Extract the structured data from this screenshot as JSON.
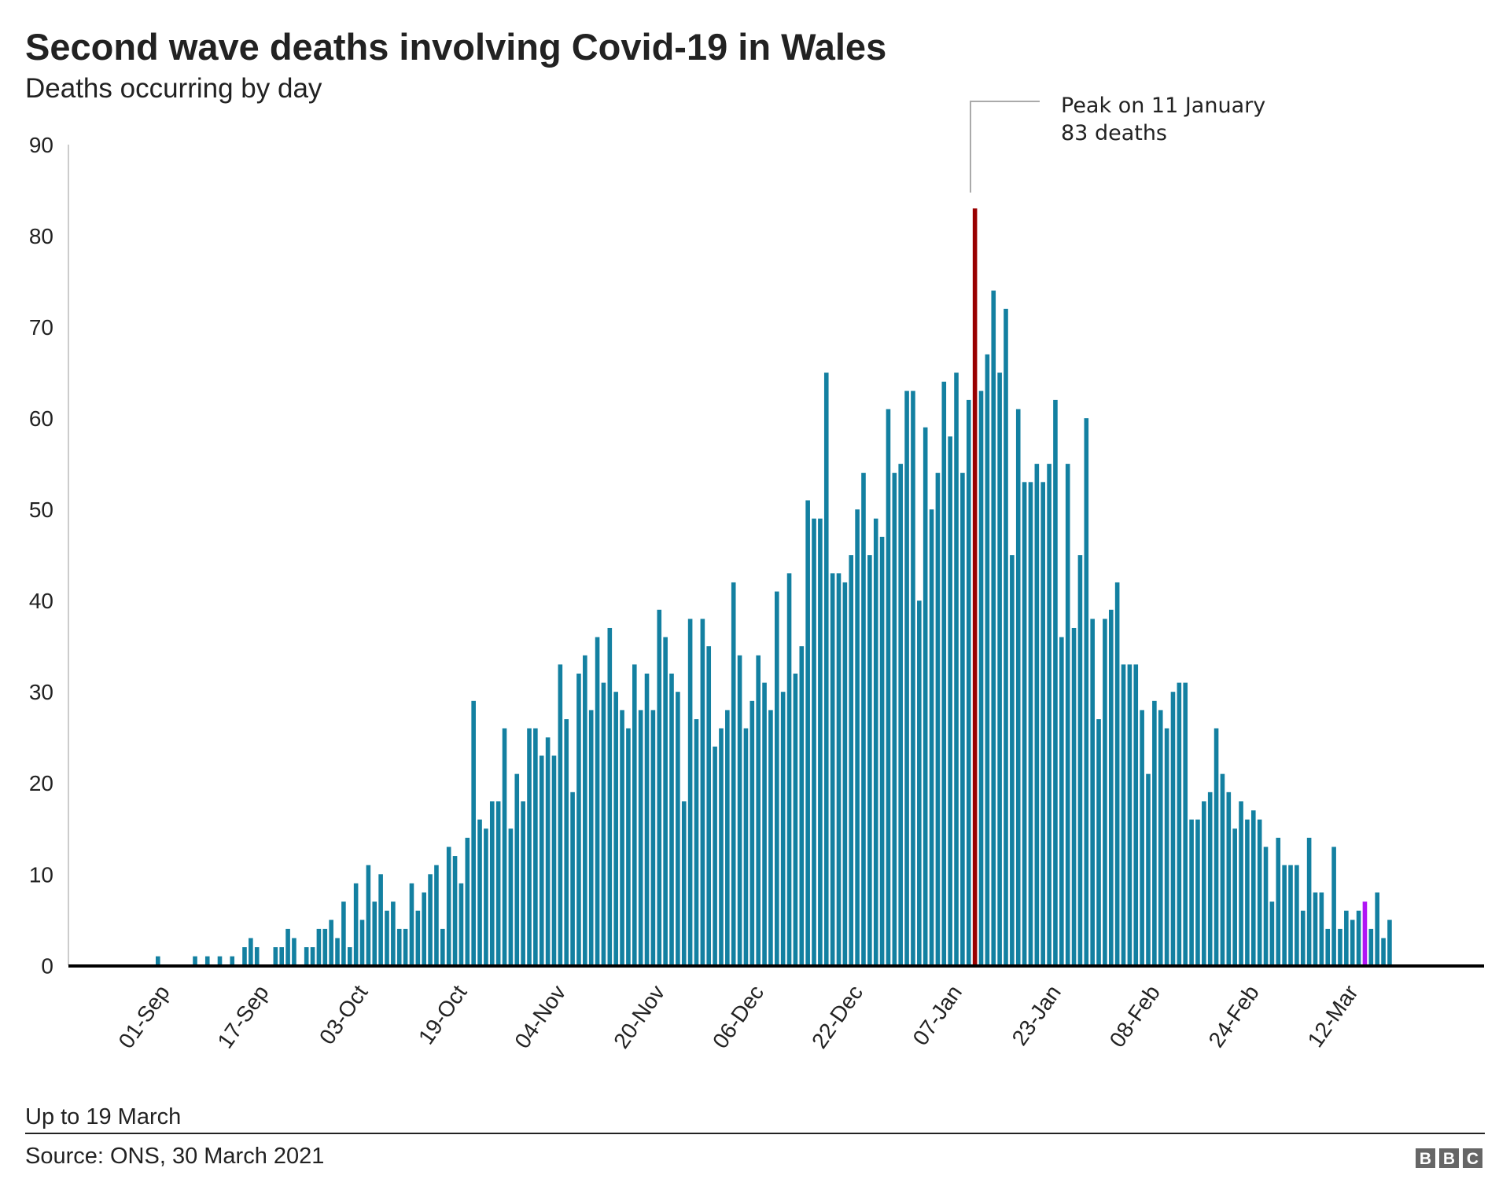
{
  "chart_data": {
    "type": "bar",
    "title": "Second wave deaths involving Covid-19 in Wales",
    "subtitle": "Deaths occurring by day",
    "xlabel": "",
    "ylabel": "",
    "ylim": [
      0,
      90
    ],
    "yticks": [
      "0",
      "10",
      "20",
      "30",
      "40",
      "50",
      "60",
      "70",
      "80",
      "90"
    ],
    "grid": false,
    "legend": "none",
    "x_start": "01-Sep",
    "x_end": "19 March",
    "xtick_labels": [
      "01-Sep",
      "17-Sep",
      "03-Oct",
      "19-Oct",
      "04-Nov",
      "20-Nov",
      "06-Dec",
      "22-Dec",
      "07-Jan",
      "23-Jan",
      "08-Feb",
      "24-Feb",
      "12-Mar"
    ],
    "xtick_day_index": [
      0,
      16,
      32,
      48,
      64,
      80,
      96,
      112,
      128,
      144,
      160,
      176,
      192
    ],
    "values": [
      1,
      0,
      0,
      0,
      0,
      0,
      1,
      0,
      1,
      0,
      1,
      0,
      1,
      0,
      2,
      3,
      2,
      0,
      0,
      2,
      2,
      4,
      3,
      0,
      2,
      2,
      4,
      4,
      5,
      3,
      7,
      2,
      9,
      5,
      11,
      7,
      10,
      6,
      7,
      4,
      4,
      9,
      6,
      8,
      10,
      11,
      4,
      13,
      12,
      9,
      14,
      29,
      16,
      15,
      18,
      18,
      26,
      15,
      21,
      18,
      26,
      26,
      23,
      25,
      23,
      33,
      27,
      19,
      32,
      34,
      28,
      36,
      31,
      37,
      30,
      28,
      26,
      33,
      28,
      32,
      28,
      39,
      36,
      32,
      30,
      18,
      38,
      27,
      38,
      35,
      24,
      26,
      28,
      42,
      34,
      26,
      29,
      34,
      31,
      28,
      41,
      30,
      43,
      32,
      35,
      51,
      49,
      49,
      65,
      43,
      43,
      42,
      45,
      50,
      54,
      45,
      49,
      47,
      61,
      54,
      55,
      63,
      63,
      40,
      59,
      50,
      54,
      64,
      58,
      65,
      54,
      62,
      83,
      63,
      67,
      74,
      65,
      72,
      45,
      61,
      53,
      53,
      55,
      53,
      55,
      62,
      36,
      55,
      37,
      45,
      60,
      38,
      27,
      38,
      39,
      42,
      33,
      33,
      33,
      28,
      21,
      29,
      28,
      26,
      30,
      31,
      31,
      16,
      16,
      18,
      19,
      26,
      21,
      19,
      15,
      18,
      16,
      17,
      16,
      13,
      7,
      14,
      11,
      11,
      11,
      6,
      14,
      8,
      8,
      4,
      13,
      4,
      6,
      5,
      6,
      7,
      4,
      8,
      3,
      5
    ],
    "highlight": [
      {
        "day_index": 132,
        "color": "#990000"
      },
      {
        "day_index": 195,
        "color": "#b014f5"
      }
    ],
    "bar_color": "#1380a1",
    "annotation": {
      "line1": "Peak on 11 January",
      "line2": "83 deaths"
    }
  },
  "footer": {
    "note": "Up to 19 March",
    "source": "Source: ONS, 30 March 2021",
    "logo": "BBC",
    "logo_letters": [
      "B",
      "B",
      "C"
    ]
  }
}
